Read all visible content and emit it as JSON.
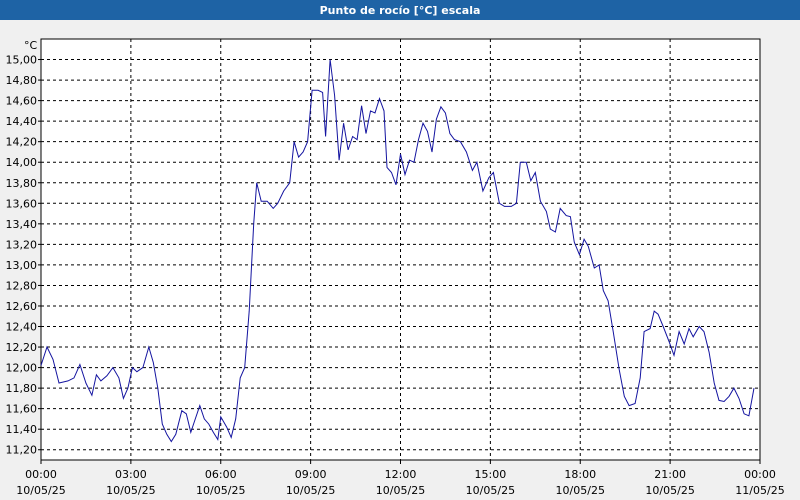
{
  "chart_data": {
    "type": "line",
    "title": "Punto de rocío [°C] escala",
    "y_unit": "°C",
    "xlim": [
      0,
      24
    ],
    "ylim": [
      11.1,
      15.2
    ],
    "grid": true,
    "xticks": [
      {
        "value": 0,
        "label": "00:00"
      },
      {
        "value": 3,
        "label": "03:00"
      },
      {
        "value": 6,
        "label": "06:00"
      },
      {
        "value": 9,
        "label": "09:00"
      },
      {
        "value": 12,
        "label": "12:00"
      },
      {
        "value": 15,
        "label": "15:00"
      },
      {
        "value": 18,
        "label": "18:00"
      },
      {
        "value": 21,
        "label": "21:00"
      },
      {
        "value": 24,
        "label": "00:00"
      }
    ],
    "xtick_dates": [
      "10/05/25",
      "10/05/25",
      "10/05/25",
      "10/05/25",
      "10/05/25",
      "10/05/25",
      "10/05/25",
      "10/05/25",
      "11/05/25"
    ],
    "yticks": [
      {
        "value": 11.2,
        "label": "11,20"
      },
      {
        "value": 11.4,
        "label": "11,40"
      },
      {
        "value": 11.6,
        "label": "11,60"
      },
      {
        "value": 11.8,
        "label": "11,80"
      },
      {
        "value": 12,
        "label": "12,00"
      },
      {
        "value": 12.2,
        "label": "12,20"
      },
      {
        "value": 12.4,
        "label": "12,40"
      },
      {
        "value": 12.6,
        "label": "12,60"
      },
      {
        "value": 12.8,
        "label": "12,80"
      },
      {
        "value": 13,
        "label": "13,00"
      },
      {
        "value": 13.2,
        "label": "13,20"
      },
      {
        "value": 13.4,
        "label": "13,40"
      },
      {
        "value": 13.6,
        "label": "13,60"
      },
      {
        "value": 13.8,
        "label": "13,80"
      },
      {
        "value": 14,
        "label": "14,00"
      },
      {
        "value": 14.2,
        "label": "14,20"
      },
      {
        "value": 14.4,
        "label": "14,40"
      },
      {
        "value": 14.6,
        "label": "14,60"
      },
      {
        "value": 14.8,
        "label": "14,80"
      },
      {
        "value": 15,
        "label": "15,00"
      }
    ],
    "series": [
      {
        "color": "#1414a0",
        "x": [
          0.0,
          0.2,
          0.4,
          0.6,
          0.9,
          1.1,
          1.3,
          1.5,
          1.7,
          1.85,
          2.0,
          2.2,
          2.4,
          2.6,
          2.75,
          2.9,
          3.05,
          3.2,
          3.4,
          3.6,
          3.75,
          3.9,
          4.05,
          4.2,
          4.35,
          4.5,
          4.7,
          4.85,
          5.0,
          5.15,
          5.3,
          5.45,
          5.6,
          5.75,
          5.9,
          6.0,
          6.2,
          6.35,
          6.5,
          6.65,
          6.8,
          6.95,
          7.1,
          7.2,
          7.35,
          7.55,
          7.75,
          7.9,
          8.1,
          8.3,
          8.45,
          8.6,
          8.75,
          8.9,
          9.05,
          9.25,
          9.4,
          9.5,
          9.65,
          9.8,
          9.95,
          10.1,
          10.25,
          10.4,
          10.55,
          10.7,
          10.85,
          11.0,
          11.15,
          11.3,
          11.45,
          11.55,
          11.7,
          11.85,
          12.0,
          12.15,
          12.3,
          12.45,
          12.6,
          12.75,
          12.9,
          13.05,
          13.2,
          13.35,
          13.5,
          13.65,
          13.8,
          14.0,
          14.2,
          14.4,
          14.55,
          14.75,
          14.95,
          15.1,
          15.3,
          15.47,
          15.7,
          15.87,
          16.0,
          16.2,
          16.35,
          16.5,
          16.67,
          16.87,
          17.0,
          17.17,
          17.33,
          17.53,
          17.67,
          17.8,
          17.97,
          18.13,
          18.27,
          18.47,
          18.63,
          18.77,
          18.93,
          19.1,
          19.3,
          19.47,
          19.63,
          19.83,
          20.0,
          20.13,
          20.33,
          20.47,
          20.6,
          20.77,
          20.97,
          21.13,
          21.3,
          21.47,
          21.63,
          21.77,
          21.97,
          22.13,
          22.3,
          22.47,
          22.63,
          22.8,
          22.97,
          23.13,
          23.3,
          23.47,
          23.63,
          23.8
        ],
        "values": [
          12.02,
          12.2,
          12.08,
          11.85,
          11.87,
          11.9,
          12.03,
          11.85,
          11.73,
          11.93,
          11.87,
          11.92,
          12.0,
          11.9,
          11.7,
          11.8,
          12.0,
          11.96,
          12.0,
          12.2,
          12.05,
          11.8,
          11.45,
          11.35,
          11.28,
          11.35,
          11.58,
          11.55,
          11.37,
          11.5,
          11.63,
          11.5,
          11.45,
          11.37,
          11.3,
          11.52,
          11.42,
          11.32,
          11.5,
          11.9,
          12.0,
          12.55,
          13.4,
          13.8,
          13.62,
          13.62,
          13.55,
          13.6,
          13.72,
          13.8,
          14.2,
          14.05,
          14.1,
          14.2,
          14.7,
          14.7,
          14.68,
          14.25,
          15.0,
          14.65,
          14.02,
          14.38,
          14.12,
          14.25,
          14.22,
          14.55,
          14.28,
          14.5,
          14.48,
          14.62,
          14.5,
          13.95,
          13.9,
          13.78,
          14.08,
          13.88,
          14.02,
          14.0,
          14.22,
          14.38,
          14.3,
          14.1,
          14.42,
          14.54,
          14.48,
          14.28,
          14.22,
          14.2,
          14.1,
          13.92,
          14.0,
          13.72,
          13.85,
          13.9,
          13.6,
          13.57,
          13.57,
          13.6,
          14.0,
          14.0,
          13.82,
          13.9,
          13.62,
          13.52,
          13.35,
          13.32,
          13.55,
          13.48,
          13.47,
          13.22,
          13.1,
          13.25,
          13.18,
          12.97,
          13.0,
          12.75,
          12.65,
          12.35,
          11.98,
          11.72,
          11.63,
          11.65,
          11.9,
          12.35,
          12.38,
          12.55,
          12.52,
          12.4,
          12.25,
          12.12,
          12.35,
          12.23,
          12.38,
          12.3,
          12.4,
          12.35,
          12.15,
          11.85,
          11.68,
          11.67,
          11.72,
          11.8,
          11.7,
          11.55,
          11.53,
          11.8
        ]
      }
    ]
  }
}
